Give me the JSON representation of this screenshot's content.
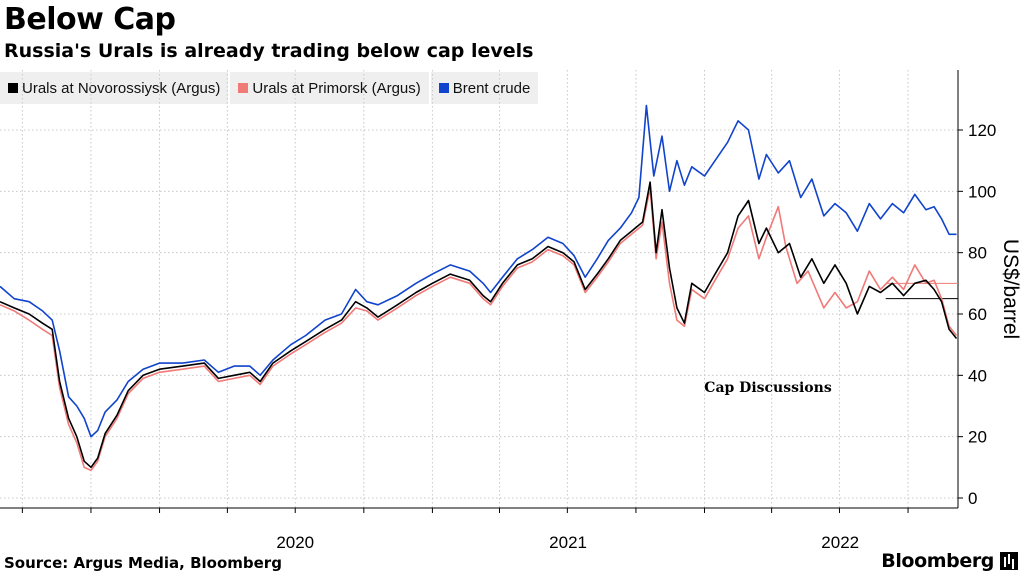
{
  "header": {
    "title": "Below Cap",
    "subtitle": "Russia's Urals is already trading below cap levels"
  },
  "footer": {
    "source": "Source: Argus Media, Bloomberg",
    "brand": "Bloomberg"
  },
  "colors": {
    "urals_novorossiysk": "#000000",
    "urals_primorsk": "#f07a78",
    "brent": "#1144cc",
    "grid": "#c8c8c8"
  },
  "chart_data": {
    "type": "line",
    "title": "Below Cap",
    "subtitle": "Russia's Urals is already trading below cap levels",
    "ylabel": "US$/barrel",
    "ylim": [
      -5,
      140
    ],
    "yticks": [
      0,
      20,
      40,
      60,
      80,
      100,
      120
    ],
    "xlim": [
      "2019-06-01",
      "2022-12-07"
    ],
    "xtick_labels": [
      {
        "label": "2020",
        "date": "2020-01-01"
      },
      {
        "label": "2021",
        "date": "2021-01-01"
      },
      {
        "label": "2022",
        "date": "2022-01-01"
      }
    ],
    "grid": "vertical dotted",
    "legend_position": "top-left",
    "annotations": [
      {
        "text": "Cap Discussions"
      }
    ],
    "reference_lines": [
      {
        "y": 70,
        "from": "2022-09-01",
        "to": "2022-12-07",
        "color": "#f07a78"
      },
      {
        "y": 65,
        "from": "2022-09-01",
        "to": "2022-12-07",
        "color": "#000000"
      }
    ],
    "series": [
      {
        "name": "Urals at Novorossiysk (Argus)",
        "points": [
          [
            "2019-06-01",
            64
          ],
          [
            "2019-06-20",
            62
          ],
          [
            "2019-07-10",
            60
          ],
          [
            "2019-07-28",
            57
          ],
          [
            "2019-08-10",
            55
          ],
          [
            "2019-08-20",
            38
          ],
          [
            "2019-09-01",
            26
          ],
          [
            "2019-09-12",
            20
          ],
          [
            "2019-09-22",
            12
          ],
          [
            "2019-10-01",
            10
          ],
          [
            "2019-10-10",
            13
          ],
          [
            "2019-10-20",
            21
          ],
          [
            "2019-11-05",
            27
          ],
          [
            "2019-11-20",
            35
          ],
          [
            "2019-12-10",
            40
          ],
          [
            "2020-01-01",
            42
          ],
          [
            "2020-02-01",
            43
          ],
          [
            "2020-03-01",
            44
          ],
          [
            "2020-03-20",
            39
          ],
          [
            "2020-04-10",
            40
          ],
          [
            "2020-05-01",
            41
          ],
          [
            "2020-05-15",
            38
          ],
          [
            "2020-06-01",
            44
          ],
          [
            "2020-06-25",
            48
          ],
          [
            "2020-07-15",
            51
          ],
          [
            "2020-08-10",
            55
          ],
          [
            "2020-09-01",
            58
          ],
          [
            "2020-09-20",
            64
          ],
          [
            "2020-10-05",
            62
          ],
          [
            "2020-10-20",
            59
          ],
          [
            "2020-11-15",
            63
          ],
          [
            "2020-12-10",
            67
          ],
          [
            "2021-01-01",
            70
          ],
          [
            "2021-01-25",
            73
          ],
          [
            "2021-02-20",
            71
          ],
          [
            "2021-03-10",
            66
          ],
          [
            "2021-03-20",
            64
          ],
          [
            "2021-04-05",
            70
          ],
          [
            "2021-04-25",
            76
          ],
          [
            "2021-05-15",
            78
          ],
          [
            "2021-06-05",
            82
          ],
          [
            "2021-06-25",
            80
          ],
          [
            "2021-07-10",
            77
          ],
          [
            "2021-07-25",
            68
          ],
          [
            "2021-08-10",
            73
          ],
          [
            "2021-08-25",
            78
          ],
          [
            "2021-09-10",
            84
          ],
          [
            "2021-09-25",
            87
          ],
          [
            "2021-10-10",
            90
          ],
          [
            "2021-10-20",
            103
          ],
          [
            "2021-10-28",
            80
          ],
          [
            "2021-11-05",
            94
          ],
          [
            "2021-11-15",
            75
          ],
          [
            "2021-11-25",
            62
          ],
          [
            "2021-12-05",
            57
          ],
          [
            "2021-12-15",
            70
          ],
          [
            "2022-01-01",
            67
          ],
          [
            "2022-01-15",
            73
          ],
          [
            "2022-02-01",
            80
          ],
          [
            "2022-02-15",
            92
          ],
          [
            "2022-03-01",
            97
          ],
          [
            "2022-03-15",
            83
          ],
          [
            "2022-03-25",
            88
          ],
          [
            "2022-04-10",
            80
          ],
          [
            "2022-04-25",
            83
          ],
          [
            "2022-05-10",
            72
          ],
          [
            "2022-05-25",
            78
          ],
          [
            "2022-06-10",
            70
          ],
          [
            "2022-06-25",
            76
          ],
          [
            "2022-07-10",
            70
          ],
          [
            "2022-07-25",
            60
          ],
          [
            "2022-08-10",
            69
          ],
          [
            "2022-08-25",
            67
          ],
          [
            "2022-09-10",
            70
          ],
          [
            "2022-09-25",
            66
          ],
          [
            "2022-10-10",
            70
          ],
          [
            "2022-10-25",
            71
          ],
          [
            "2022-11-05",
            68
          ],
          [
            "2022-11-15",
            64
          ],
          [
            "2022-11-25",
            55
          ],
          [
            "2022-12-05",
            52
          ]
        ]
      },
      {
        "name": "Urals at Primorsk (Argus)",
        "points": [
          [
            "2019-06-01",
            63
          ],
          [
            "2019-06-20",
            61
          ],
          [
            "2019-07-10",
            58
          ],
          [
            "2019-07-28",
            55
          ],
          [
            "2019-08-10",
            53
          ],
          [
            "2019-08-20",
            36
          ],
          [
            "2019-09-01",
            24
          ],
          [
            "2019-09-12",
            18
          ],
          [
            "2019-09-22",
            10
          ],
          [
            "2019-10-01",
            9
          ],
          [
            "2019-10-10",
            12
          ],
          [
            "2019-10-20",
            20
          ],
          [
            "2019-11-05",
            26
          ],
          [
            "2019-11-20",
            34
          ],
          [
            "2019-12-10",
            39
          ],
          [
            "2020-01-01",
            41
          ],
          [
            "2020-02-01",
            42
          ],
          [
            "2020-03-01",
            43
          ],
          [
            "2020-03-20",
            38
          ],
          [
            "2020-04-10",
            39
          ],
          [
            "2020-05-01",
            40
          ],
          [
            "2020-05-15",
            37
          ],
          [
            "2020-06-01",
            43
          ],
          [
            "2020-06-25",
            47
          ],
          [
            "2020-07-15",
            50
          ],
          [
            "2020-08-10",
            54
          ],
          [
            "2020-09-01",
            57
          ],
          [
            "2020-09-20",
            62
          ],
          [
            "2020-10-05",
            61
          ],
          [
            "2020-10-20",
            58
          ],
          [
            "2020-11-15",
            62
          ],
          [
            "2020-12-10",
            66
          ],
          [
            "2021-01-01",
            69
          ],
          [
            "2021-01-25",
            72
          ],
          [
            "2021-02-20",
            70
          ],
          [
            "2021-03-10",
            65
          ],
          [
            "2021-03-20",
            63
          ],
          [
            "2021-04-05",
            69
          ],
          [
            "2021-04-25",
            75
          ],
          [
            "2021-05-15",
            77
          ],
          [
            "2021-06-05",
            81
          ],
          [
            "2021-06-25",
            79
          ],
          [
            "2021-07-10",
            76
          ],
          [
            "2021-07-25",
            67
          ],
          [
            "2021-08-10",
            72
          ],
          [
            "2021-08-25",
            77
          ],
          [
            "2021-09-10",
            83
          ],
          [
            "2021-09-25",
            86
          ],
          [
            "2021-10-10",
            89
          ],
          [
            "2021-10-20",
            101
          ],
          [
            "2021-10-28",
            78
          ],
          [
            "2021-11-05",
            90
          ],
          [
            "2021-11-15",
            70
          ],
          [
            "2021-11-25",
            58
          ],
          [
            "2021-12-05",
            56
          ],
          [
            "2021-12-15",
            68
          ],
          [
            "2022-01-01",
            65
          ],
          [
            "2022-01-15",
            71
          ],
          [
            "2022-02-01",
            78
          ],
          [
            "2022-02-15",
            88
          ],
          [
            "2022-03-01",
            92
          ],
          [
            "2022-03-15",
            78
          ],
          [
            "2022-03-25",
            85
          ],
          [
            "2022-04-10",
            95
          ],
          [
            "2022-04-20",
            82
          ],
          [
            "2022-05-05",
            70
          ],
          [
            "2022-05-20",
            74
          ],
          [
            "2022-06-10",
            62
          ],
          [
            "2022-06-25",
            67
          ],
          [
            "2022-07-10",
            62
          ],
          [
            "2022-07-25",
            64
          ],
          [
            "2022-08-10",
            74
          ],
          [
            "2022-08-25",
            68
          ],
          [
            "2022-09-10",
            72
          ],
          [
            "2022-09-25",
            68
          ],
          [
            "2022-10-10",
            76
          ],
          [
            "2022-10-25",
            70
          ],
          [
            "2022-11-05",
            71
          ],
          [
            "2022-11-15",
            65
          ],
          [
            "2022-11-25",
            56
          ],
          [
            "2022-12-05",
            53
          ]
        ]
      },
      {
        "name": "Brent crude",
        "points": [
          [
            "2019-06-01",
            69
          ],
          [
            "2019-06-20",
            65
          ],
          [
            "2019-07-10",
            64
          ],
          [
            "2019-07-28",
            61
          ],
          [
            "2019-08-10",
            58
          ],
          [
            "2019-08-20",
            48
          ],
          [
            "2019-09-01",
            33
          ],
          [
            "2019-09-12",
            30
          ],
          [
            "2019-09-22",
            26
          ],
          [
            "2019-10-01",
            20
          ],
          [
            "2019-10-10",
            22
          ],
          [
            "2019-10-20",
            28
          ],
          [
            "2019-11-05",
            32
          ],
          [
            "2019-11-20",
            38
          ],
          [
            "2019-12-10",
            42
          ],
          [
            "2020-01-01",
            44
          ],
          [
            "2020-02-01",
            44
          ],
          [
            "2020-03-01",
            45
          ],
          [
            "2020-03-20",
            41
          ],
          [
            "2020-04-10",
            43
          ],
          [
            "2020-05-01",
            43
          ],
          [
            "2020-05-15",
            40
          ],
          [
            "2020-06-01",
            45
          ],
          [
            "2020-06-25",
            50
          ],
          [
            "2020-07-15",
            53
          ],
          [
            "2020-08-10",
            58
          ],
          [
            "2020-09-01",
            60
          ],
          [
            "2020-09-20",
            68
          ],
          [
            "2020-10-05",
            64
          ],
          [
            "2020-10-20",
            63
          ],
          [
            "2020-11-15",
            66
          ],
          [
            "2020-12-10",
            70
          ],
          [
            "2021-01-01",
            73
          ],
          [
            "2021-01-25",
            76
          ],
          [
            "2021-02-20",
            74
          ],
          [
            "2021-03-10",
            70
          ],
          [
            "2021-03-20",
            67
          ],
          [
            "2021-04-05",
            72
          ],
          [
            "2021-04-25",
            78
          ],
          [
            "2021-05-15",
            81
          ],
          [
            "2021-06-05",
            85
          ],
          [
            "2021-06-25",
            83
          ],
          [
            "2021-07-10",
            79
          ],
          [
            "2021-07-25",
            72
          ],
          [
            "2021-08-10",
            78
          ],
          [
            "2021-08-25",
            84
          ],
          [
            "2021-09-10",
            88
          ],
          [
            "2021-09-25",
            93
          ],
          [
            "2021-10-05",
            98
          ],
          [
            "2021-10-15",
            128
          ],
          [
            "2021-10-25",
            105
          ],
          [
            "2021-11-05",
            118
          ],
          [
            "2021-11-15",
            100
          ],
          [
            "2021-11-25",
            110
          ],
          [
            "2021-12-05",
            102
          ],
          [
            "2021-12-15",
            108
          ],
          [
            "2022-01-01",
            105
          ],
          [
            "2022-01-15",
            110
          ],
          [
            "2022-02-01",
            116
          ],
          [
            "2022-02-15",
            123
          ],
          [
            "2022-03-01",
            120
          ],
          [
            "2022-03-15",
            104
          ],
          [
            "2022-03-25",
            112
          ],
          [
            "2022-04-10",
            106
          ],
          [
            "2022-04-25",
            110
          ],
          [
            "2022-05-10",
            98
          ],
          [
            "2022-05-25",
            104
          ],
          [
            "2022-06-10",
            92
          ],
          [
            "2022-06-25",
            96
          ],
          [
            "2022-07-10",
            93
          ],
          [
            "2022-07-25",
            87
          ],
          [
            "2022-08-10",
            96
          ],
          [
            "2022-08-25",
            91
          ],
          [
            "2022-09-10",
            96
          ],
          [
            "2022-09-25",
            93
          ],
          [
            "2022-10-10",
            99
          ],
          [
            "2022-10-25",
            94
          ],
          [
            "2022-11-05",
            95
          ],
          [
            "2022-11-15",
            91
          ],
          [
            "2022-11-25",
            86
          ],
          [
            "2022-12-05",
            86
          ]
        ]
      }
    ]
  }
}
